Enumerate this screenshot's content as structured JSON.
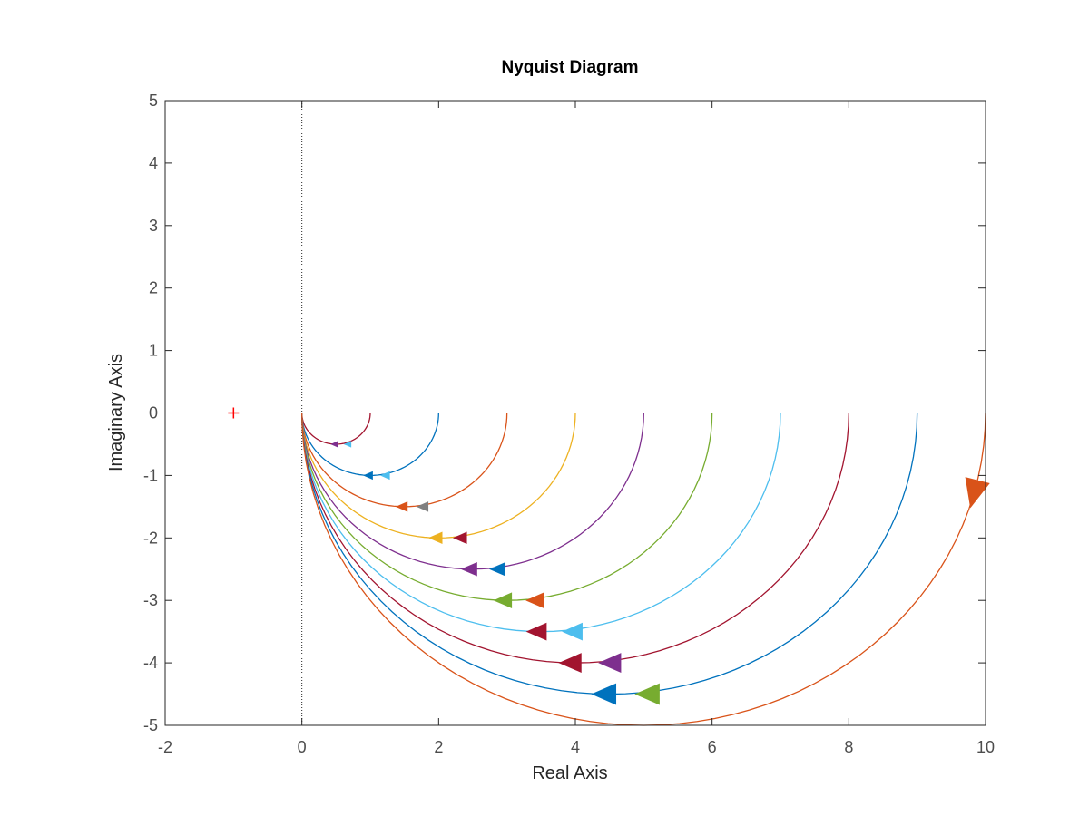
{
  "chart_data": {
    "type": "line",
    "title": "Nyquist Diagram",
    "xlabel": "Real Axis",
    "ylabel": "Imaginary Axis",
    "xlim": [
      -2,
      10
    ],
    "ylim": [
      -5,
      5
    ],
    "xticks": [
      "-2",
      "0",
      "2",
      "4",
      "6",
      "8",
      "10"
    ],
    "yticks": [
      "5",
      "4",
      "3",
      "2",
      "1",
      "0",
      "-1",
      "-2",
      "-3",
      "-4",
      "-5"
    ],
    "grid": false,
    "legend": "none",
    "critical_point": {
      "x": -1,
      "y": 0,
      "marker": "+",
      "color": "#ff0000"
    },
    "series": [
      {
        "gain": 1,
        "x": [
          0,
          0.5,
          1
        ],
        "y": [
          0,
          -0.5,
          0
        ],
        "color": "#a2142f",
        "arrow_colors": [
          "#7e2f8e",
          "#4dbeee"
        ]
      },
      {
        "gain": 2,
        "x": [
          0,
          1,
          2
        ],
        "y": [
          0,
          -1,
          0
        ],
        "color": "#0072bd",
        "arrow_colors": [
          "#0072bd",
          "#4dbeee"
        ]
      },
      {
        "gain": 3,
        "x": [
          0,
          1.5,
          3
        ],
        "y": [
          0,
          -1.5,
          0
        ],
        "color": "#d95319",
        "arrow_colors": [
          "#d95319",
          "#808080"
        ]
      },
      {
        "gain": 4,
        "x": [
          0,
          2,
          4
        ],
        "y": [
          0,
          -2,
          0
        ],
        "color": "#edb120",
        "arrow_colors": [
          "#edb120",
          "#a2142f"
        ]
      },
      {
        "gain": 5,
        "x": [
          0,
          2.5,
          5
        ],
        "y": [
          0,
          -2.5,
          0
        ],
        "color": "#7e2f8e",
        "arrow_colors": [
          "#7e2f8e",
          "#0072bd"
        ]
      },
      {
        "gain": 6,
        "x": [
          0,
          3,
          6
        ],
        "y": [
          0,
          -3,
          0
        ],
        "color": "#77ac30",
        "arrow_colors": [
          "#77ac30",
          "#d95319"
        ]
      },
      {
        "gain": 7,
        "x": [
          0,
          3.5,
          7
        ],
        "y": [
          0,
          -3.5,
          0
        ],
        "color": "#4dbeee",
        "arrow_colors": [
          "#a2142f",
          "#4dbeee"
        ]
      },
      {
        "gain": 8,
        "x": [
          0,
          4,
          8
        ],
        "y": [
          0,
          -4,
          0
        ],
        "color": "#a2142f",
        "arrow_colors": [
          "#a2142f",
          "#7e2f8e"
        ]
      },
      {
        "gain": 9,
        "x": [
          0,
          4.5,
          9
        ],
        "y": [
          0,
          -4.5,
          0
        ],
        "color": "#0072bd",
        "arrow_colors": [
          "#0072bd",
          "#77ac30"
        ]
      },
      {
        "gain": 10,
        "x": [
          0,
          5,
          10
        ],
        "y": [
          0,
          -5,
          0
        ],
        "color": "#d95319",
        "arrow_colors": [
          "#d95319"
        ]
      }
    ]
  }
}
